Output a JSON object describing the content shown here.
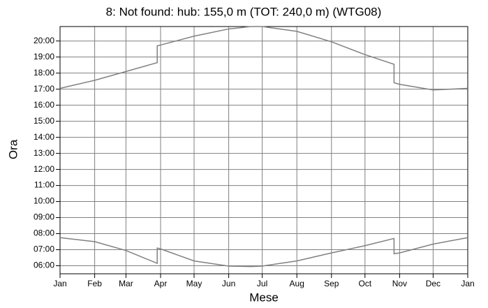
{
  "chart_data": {
    "type": "line",
    "title": "8: Not found:  hub: 155,0 m (TOT: 240,0 m) (WTG08)",
    "x_label": "Mese",
    "y_label": "Ora",
    "xlim": [
      0,
      365
    ],
    "xticks": [
      {
        "value": 0,
        "label": "Jan"
      },
      {
        "value": 31,
        "label": "Feb"
      },
      {
        "value": 59,
        "label": "Mar"
      },
      {
        "value": 90,
        "label": "Apr"
      },
      {
        "value": 120,
        "label": "May"
      },
      {
        "value": 151,
        "label": "Jun"
      },
      {
        "value": 181,
        "label": "Jul"
      },
      {
        "value": 212,
        "label": "Aug"
      },
      {
        "value": 243,
        "label": "Sep"
      },
      {
        "value": 273,
        "label": "Oct"
      },
      {
        "value": 304,
        "label": "Nov"
      },
      {
        "value": 334,
        "label": "Dec"
      },
      {
        "value": 365,
        "label": "Jan"
      }
    ],
    "ylim": [
      5.5,
      20.9
    ],
    "yticks": [
      {
        "value": 6,
        "label": "06:00"
      },
      {
        "value": 7,
        "label": "07:00"
      },
      {
        "value": 8,
        "label": "08:00"
      },
      {
        "value": 9,
        "label": "09:00"
      },
      {
        "value": 10,
        "label": "10:00"
      },
      {
        "value": 11,
        "label": "11:00"
      },
      {
        "value": 12,
        "label": "12:00"
      },
      {
        "value": 13,
        "label": "13:00"
      },
      {
        "value": 14,
        "label": "14:00"
      },
      {
        "value": 15,
        "label": "15:00"
      },
      {
        "value": 16,
        "label": "16:00"
      },
      {
        "value": 17,
        "label": "17:00"
      },
      {
        "value": 18,
        "label": "18:00"
      },
      {
        "value": 19,
        "label": "19:00"
      },
      {
        "value": 20,
        "label": "20:00"
      }
    ],
    "grid": true,
    "x": [
      0,
      31,
      59,
      87,
      87,
      90,
      120,
      151,
      171,
      181,
      212,
      243,
      273,
      299,
      299,
      304,
      334,
      365
    ],
    "series": [
      {
        "color": "#808080",
        "values": [
          17.05,
          17.55,
          18.1,
          18.65,
          19.7,
          19.75,
          20.3,
          20.75,
          20.9,
          20.9,
          20.6,
          19.95,
          19.15,
          18.55,
          17.4,
          17.3,
          16.95,
          17.05
        ]
      },
      {
        "color": "#808080",
        "values": [
          7.75,
          7.5,
          6.95,
          6.15,
          7.1,
          7.05,
          6.3,
          5.98,
          5.95,
          5.98,
          6.3,
          6.8,
          7.25,
          7.7,
          6.75,
          6.8,
          7.35,
          7.75
        ]
      }
    ]
  }
}
